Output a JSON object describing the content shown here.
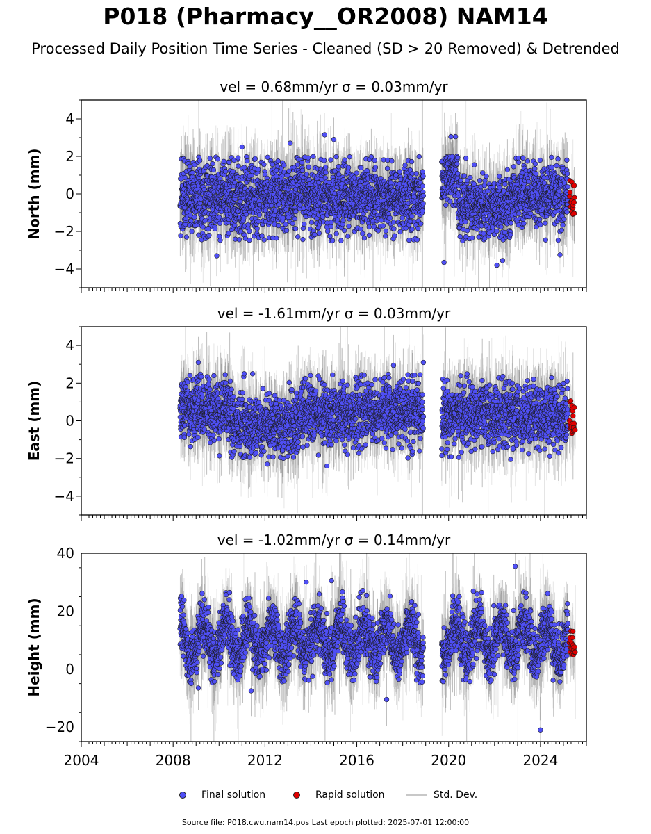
{
  "title": "P018 (Pharmacy__OR2008) NAM14",
  "subtitle": "Processed Daily Position Time Series - Cleaned (SD > 20 Removed) & Detrended",
  "chart_data": [
    {
      "type": "scatter",
      "component": "north",
      "title": "vel = 0.68mm/yr   σ = 0.03mm/yr",
      "ylabel": "North (mm)",
      "xlim": [
        2004,
        2026
      ],
      "ylim": [
        -5,
        5
      ],
      "yticks": [
        -4,
        -2,
        0,
        2,
        4
      ],
      "xticks": [
        2004,
        2008,
        2012,
        2016,
        2020,
        2024
      ],
      "show_xtick_labels": false,
      "data_start": 2008.3,
      "gap": [
        2018.9,
        2019.7
      ],
      "rapid_start": 2025.2,
      "data_end": 2025.5,
      "series": [
        {
          "name": "Final solution",
          "color": "#4f4ff5",
          "typical_range": [
            -2.5,
            2.0
          ]
        },
        {
          "name": "Rapid solution",
          "color": "#e00000",
          "typical_range": [
            -1.1,
            0.8
          ]
        }
      ],
      "segments": [
        {
          "x0": 2008.3,
          "x1": 2018.9,
          "mean": -0.2,
          "spread": 0.95
        },
        {
          "x0": 2019.7,
          "x1": 2020.4,
          "mean": 0.9,
          "spread": 0.8
        },
        {
          "x0": 2020.4,
          "x1": 2022.8,
          "mean": -0.7,
          "spread": 0.8
        },
        {
          "x0": 2022.8,
          "x1": 2025.5,
          "mean": 0.0,
          "spread": 0.8
        }
      ],
      "outliers": [
        [
          2009.9,
          -3.3
        ],
        [
          2019.8,
          -3.65
        ],
        [
          2022.1,
          -3.8
        ],
        [
          2022.35,
          -3.55
        ],
        [
          2024.85,
          -3.25
        ],
        [
          2011.0,
          2.5
        ],
        [
          2014.6,
          3.15
        ],
        [
          2015.0,
          2.9
        ],
        [
          2020.1,
          3.05
        ],
        [
          2020.3,
          3.05
        ],
        [
          2013.1,
          2.7
        ]
      ]
    },
    {
      "type": "scatter",
      "component": "east",
      "title": "vel = -1.61mm/yr   σ = 0.03mm/yr",
      "ylabel": "East (mm)",
      "xlim": [
        2004,
        2026
      ],
      "ylim": [
        -5,
        5
      ],
      "yticks": [
        -4,
        -2,
        0,
        2,
        4
      ],
      "xticks": [
        2004,
        2008,
        2012,
        2016,
        2020,
        2024
      ],
      "show_xtick_labels": false,
      "data_start": 2008.3,
      "gap": [
        2018.9,
        2019.7
      ],
      "rapid_start": 2025.2,
      "data_end": 2025.5,
      "series": [
        {
          "name": "Final solution",
          "color": "#4f4ff5",
          "typical_range": [
            -2.0,
            2.5
          ]
        },
        {
          "name": "Rapid solution",
          "color": "#e00000",
          "typical_range": [
            -0.8,
            1.2
          ]
        }
      ],
      "segments": [
        {
          "x0": 2008.3,
          "x1": 2010.5,
          "mean": 0.6,
          "spread": 0.8
        },
        {
          "x0": 2010.5,
          "x1": 2013.5,
          "mean": -0.2,
          "spread": 0.8
        },
        {
          "x0": 2013.5,
          "x1": 2018.9,
          "mean": 0.4,
          "spread": 0.8
        },
        {
          "x0": 2019.7,
          "x1": 2025.5,
          "mean": 0.3,
          "spread": 0.8
        }
      ],
      "outliers": [
        [
          2009.1,
          3.1
        ],
        [
          2018.9,
          3.1
        ],
        [
          2017.6,
          2.95
        ],
        [
          2014.7,
          -2.4
        ],
        [
          2022.7,
          -2.05
        ],
        [
          2012.1,
          -2.3
        ],
        [
          2011.1,
          2.5
        ]
      ]
    },
    {
      "type": "scatter",
      "component": "height",
      "title": "vel = -1.02mm/yr   σ = 0.14mm/yr",
      "ylabel": "Height (mm)",
      "xlim": [
        2004,
        2026
      ],
      "ylim": [
        -25,
        40
      ],
      "yticks": [
        -20,
        0,
        20,
        40
      ],
      "xticks": [
        2004,
        2008,
        2012,
        2016,
        2020,
        2024
      ],
      "show_xtick_labels": true,
      "data_start": 2008.3,
      "gap": [
        2018.9,
        2019.7
      ],
      "rapid_start": 2025.2,
      "data_end": 2025.5,
      "seasonal_amplitude": 6,
      "series": [
        {
          "name": "Final solution",
          "color": "#4f4ff5",
          "typical_range": [
            -5,
            28
          ]
        },
        {
          "name": "Rapid solution",
          "color": "#e00000",
          "typical_range": [
            5,
            15
          ]
        }
      ],
      "segments": [
        {
          "x0": 2008.3,
          "x1": 2018.9,
          "mean": 10.0,
          "spread": 4.5
        },
        {
          "x0": 2019.7,
          "x1": 2025.5,
          "mean": 10.0,
          "spread": 4.5
        }
      ],
      "outliers": [
        [
          2024.0,
          -21
        ],
        [
          2022.9,
          35.5
        ],
        [
          2013.8,
          30
        ],
        [
          2014.9,
          30.5
        ],
        [
          2017.3,
          -10.5
        ],
        [
          2009.1,
          -6.5
        ],
        [
          2011.4,
          -7.5
        ]
      ]
    }
  ],
  "legend": {
    "final_label": "Final solution",
    "rapid_label": "Rapid solution",
    "std_label": "Std. Dev.",
    "final_color": "#4f4ff5",
    "rapid_color": "#e00000",
    "std_color": "#c8c8c8"
  },
  "footer": "Source file: P018.cwu.nam14.pos  Last epoch plotted: 2025-07-01 12:00:00"
}
